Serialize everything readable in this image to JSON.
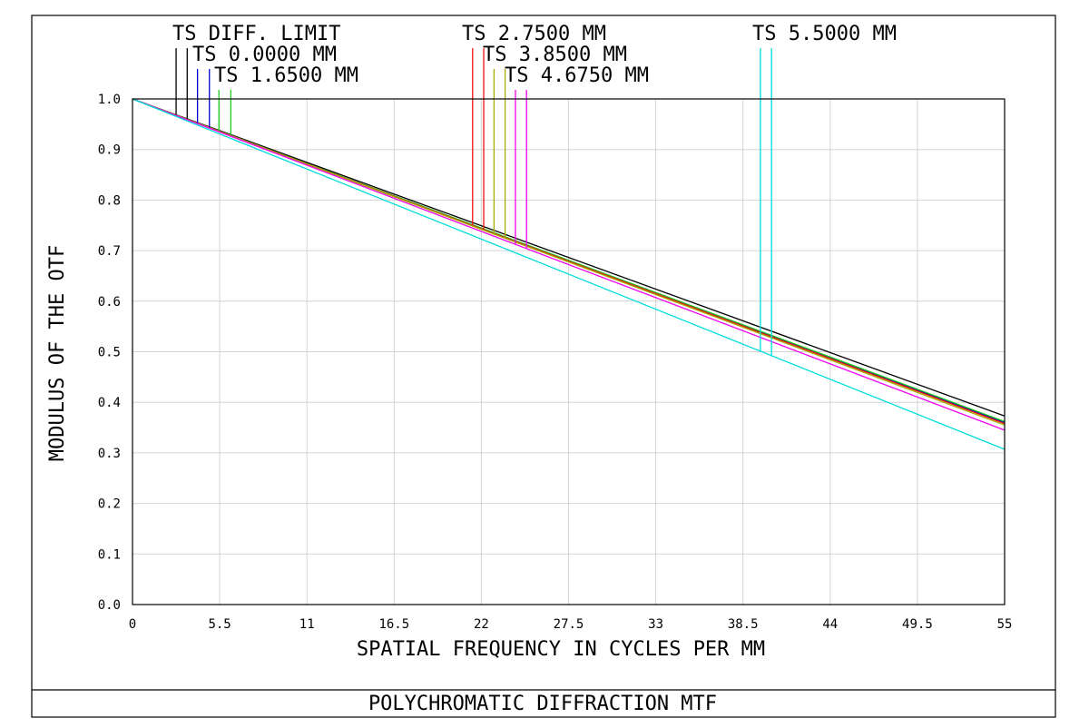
{
  "footer": {
    "title": "POLYCHROMATIC DIFFRACTION MTF"
  },
  "chart_data": {
    "type": "line",
    "title": "POLYCHROMATIC DIFFRACTION MTF",
    "xlabel": "SPATIAL FREQUENCY IN CYCLES PER MM",
    "ylabel": "MODULUS OF THE OTF",
    "xlim": [
      0,
      55
    ],
    "ylim": [
      0,
      1
    ],
    "x_ticks": [
      "0",
      "5.5",
      "11",
      "16.5",
      "22",
      "27.5",
      "33",
      "38.5",
      "44",
      "49.5",
      "55"
    ],
    "y_ticks": [
      "0.0",
      "0.1",
      "0.2",
      "0.3",
      "0.4",
      "0.5",
      "0.6",
      "0.7",
      "0.8",
      "0.9",
      "1.0"
    ],
    "grid": true,
    "legend": [
      {
        "text": "TS DIFF. LIMIT",
        "color": "#000000",
        "marker_x": [
          2.75,
          3.45
        ]
      },
      {
        "text": "TS 0.0000 MM",
        "color": "#0000c8",
        "marker_x": [
          4.1,
          4.85
        ]
      },
      {
        "text": "TS 1.6500 MM",
        "color": "#22cc22",
        "marker_x": [
          5.45,
          6.2
        ]
      },
      {
        "text": "TS 2.7500 MM",
        "color": "#ee1111",
        "marker_x": [
          21.45,
          22.15
        ]
      },
      {
        "text": "TS 3.8500 MM",
        "color": "#aaaa00",
        "marker_x": [
          22.8,
          23.5
        ]
      },
      {
        "text": "TS 4.6750 MM",
        "color": "#ee00ee",
        "marker_x": [
          24.15,
          24.85
        ]
      },
      {
        "text": "TS 5.5000 MM",
        "color": "#00dddd",
        "marker_x": [
          39.6,
          40.3
        ]
      }
    ],
    "series": [
      {
        "name": "TS DIFF. LIMIT",
        "color": "#000000",
        "x": [
          0,
          55
        ],
        "y": [
          1.0,
          0.373
        ]
      },
      {
        "name": "TS 0.0000 MM",
        "color": "#0000c8",
        "x": [
          0,
          55
        ],
        "y": [
          1.0,
          0.36
        ]
      },
      {
        "name": "TS 1.6500 MM",
        "color": "#22cc22",
        "x": [
          0,
          55
        ],
        "y": [
          1.0,
          0.362
        ]
      },
      {
        "name": "TS 2.7500 MM",
        "color": "#ee1111",
        "x": [
          0,
          55
        ],
        "y": [
          1.0,
          0.358
        ]
      },
      {
        "name": "TS 3.8500 MM",
        "color": "#aaaa00",
        "x": [
          0,
          55
        ],
        "y": [
          1.0,
          0.355
        ]
      },
      {
        "name": "TS 4.6750 MM",
        "color": "#ee00ee",
        "x": [
          0,
          55
        ],
        "y": [
          1.0,
          0.345
        ]
      },
      {
        "name": "TS 5.5000 MM",
        "color": "#00dddd",
        "x": [
          0,
          55
        ],
        "y": [
          1.0,
          0.307
        ]
      }
    ]
  }
}
